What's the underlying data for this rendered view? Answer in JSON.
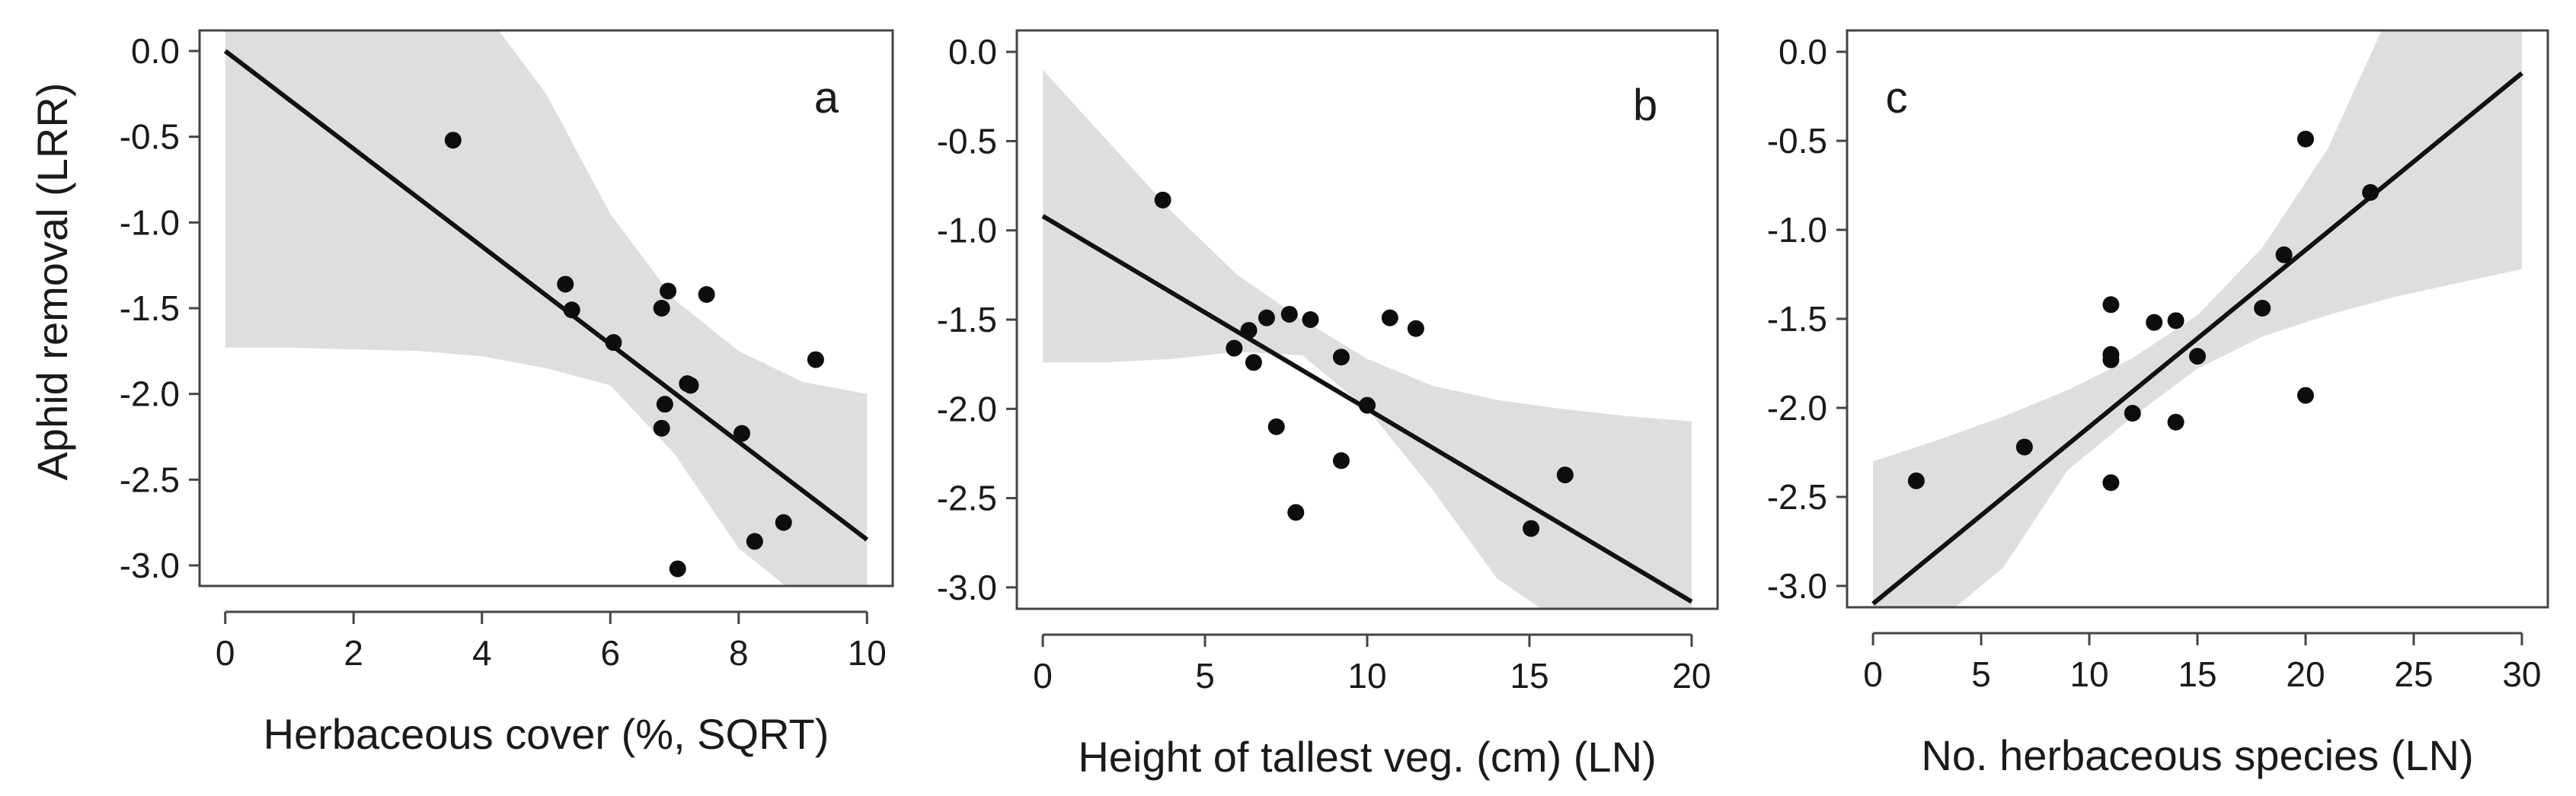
{
  "figure": {
    "ylabel": "Aphid removal (LRR)"
  },
  "chart_data": [
    {
      "type": "scatter",
      "panel_label": "a",
      "xlabel": "Herbaceous cover (%, SQRT)",
      "ylabel": "Aphid removal (LRR)",
      "xlim": [
        -0.4,
        10.4
      ],
      "ylim": [
        -3.12,
        0.12
      ],
      "xticks": [
        0,
        2,
        4,
        6,
        8,
        10
      ],
      "xtick_labels": [
        "0",
        "2",
        "4",
        "6",
        "8",
        "10"
      ],
      "yticks": [
        0.0,
        -0.5,
        -1.0,
        -1.5,
        -2.0,
        -2.5,
        -3.0
      ],
      "ytick_labels": [
        "0.0",
        "-0.5",
        "-1.0",
        "-1.5",
        "-2.0",
        "-2.5",
        "-3.0"
      ],
      "points": [
        {
          "x": 3.55,
          "y": -0.52
        },
        {
          "x": 5.3,
          "y": -1.36
        },
        {
          "x": 5.4,
          "y": -1.51
        },
        {
          "x": 6.05,
          "y": -1.7
        },
        {
          "x": 6.8,
          "y": -1.5
        },
        {
          "x": 6.9,
          "y": -1.4
        },
        {
          "x": 7.5,
          "y": -1.42
        },
        {
          "x": 9.2,
          "y": -1.8
        },
        {
          "x": 6.85,
          "y": -2.06
        },
        {
          "x": 7.2,
          "y": -1.94
        },
        {
          "x": 7.25,
          "y": -1.95
        },
        {
          "x": 6.8,
          "y": -2.2
        },
        {
          "x": 8.05,
          "y": -2.23
        },
        {
          "x": 8.25,
          "y": -2.86
        },
        {
          "x": 8.7,
          "y": -2.75
        },
        {
          "x": 7.05,
          "y": -3.02
        }
      ],
      "fit": {
        "x": [
          0,
          10
        ],
        "y": [
          0.0,
          -2.85
        ]
      },
      "ci": {
        "x": [
          0,
          1,
          2,
          3,
          4,
          5,
          6,
          7,
          8,
          9,
          10
        ],
        "upper": [
          0.25,
          0.25,
          0.25,
          0.25,
          0.25,
          -0.25,
          -0.95,
          -1.45,
          -1.75,
          -1.93,
          -2.0
        ],
        "lower": [
          -1.73,
          -1.73,
          -1.74,
          -1.75,
          -1.78,
          -1.85,
          -1.95,
          -2.35,
          -2.9,
          -3.2,
          -3.2
        ]
      }
    },
    {
      "type": "scatter",
      "panel_label": "b",
      "xlabel": "Height of tallest veg. (cm) (LN)",
      "ylabel": "",
      "xlim": [
        -0.8,
        20.8
      ],
      "ylim": [
        -3.12,
        0.12
      ],
      "xticks": [
        0,
        5,
        10,
        15,
        20
      ],
      "xtick_labels": [
        "0",
        "5",
        "10",
        "15",
        "20"
      ],
      "yticks": [
        0.0,
        -0.5,
        -1.0,
        -1.5,
        -2.0,
        -2.5,
        -3.0
      ],
      "ytick_labels": [
        "0.0",
        "-0.5",
        "-1.0",
        "-1.5",
        "-2.0",
        "-2.5",
        "-3.0"
      ],
      "points": [
        {
          "x": 3.7,
          "y": -0.83
        },
        {
          "x": 5.9,
          "y": -1.66
        },
        {
          "x": 6.35,
          "y": -1.56
        },
        {
          "x": 6.5,
          "y": -1.74
        },
        {
          "x": 6.9,
          "y": -1.49
        },
        {
          "x": 7.2,
          "y": -2.1
        },
        {
          "x": 7.6,
          "y": -1.47
        },
        {
          "x": 7.8,
          "y": -2.58
        },
        {
          "x": 8.25,
          "y": -1.5
        },
        {
          "x": 9.2,
          "y": -1.71
        },
        {
          "x": 9.2,
          "y": -2.29
        },
        {
          "x": 10.0,
          "y": -1.98
        },
        {
          "x": 10.7,
          "y": -1.49
        },
        {
          "x": 11.5,
          "y": -1.55
        },
        {
          "x": 15.05,
          "y": -2.67
        },
        {
          "x": 16.1,
          "y": -2.37
        }
      ],
      "fit": {
        "x": [
          0,
          20
        ],
        "y": [
          -0.92,
          -3.08
        ]
      },
      "ci": {
        "x": [
          0,
          2,
          4,
          6,
          8,
          10,
          12,
          14,
          16,
          18,
          20
        ],
        "upper": [
          -0.1,
          -0.5,
          -0.9,
          -1.25,
          -1.5,
          -1.72,
          -1.87,
          -1.95,
          -2.0,
          -2.04,
          -2.07
        ],
        "lower": [
          -1.74,
          -1.74,
          -1.72,
          -1.68,
          -1.7,
          -2.0,
          -2.45,
          -2.95,
          -3.2,
          -3.2,
          -3.2
        ]
      }
    },
    {
      "type": "scatter",
      "panel_label": "c",
      "xlabel": "No. herbaceous species (LN)",
      "ylabel": "",
      "xlim": [
        -1.2,
        31.2
      ],
      "ylim": [
        -3.12,
        0.12
      ],
      "xticks": [
        0,
        5,
        10,
        15,
        20,
        25,
        30
      ],
      "xtick_labels": [
        "0",
        "5",
        "10",
        "15",
        "20",
        "25",
        "30"
      ],
      "yticks": [
        0.0,
        -0.5,
        -1.0,
        -1.5,
        -2.0,
        -2.5,
        -3.0
      ],
      "ytick_labels": [
        "0.0",
        "-0.5",
        "-1.0",
        "-1.5",
        "-2.0",
        "-2.5",
        "-3.0"
      ],
      "points": [
        {
          "x": 2.0,
          "y": -2.41
        },
        {
          "x": 7.0,
          "y": -2.22
        },
        {
          "x": 11.0,
          "y": -1.42
        },
        {
          "x": 11.0,
          "y": -1.7
        },
        {
          "x": 11.0,
          "y": -1.73
        },
        {
          "x": 11.0,
          "y": -2.42
        },
        {
          "x": 12.0,
          "y": -2.03
        },
        {
          "x": 13.0,
          "y": -1.52
        },
        {
          "x": 14.0,
          "y": -1.51
        },
        {
          "x": 14.0,
          "y": -2.08
        },
        {
          "x": 15.0,
          "y": -1.71
        },
        {
          "x": 18.0,
          "y": -1.44
        },
        {
          "x": 19.0,
          "y": -1.14
        },
        {
          "x": 20.0,
          "y": -0.49
        },
        {
          "x": 20.0,
          "y": -1.93
        },
        {
          "x": 23.0,
          "y": -0.79
        }
      ],
      "fit": {
        "x": [
          0,
          30
        ],
        "y": [
          -3.1,
          -0.12
        ]
      },
      "ci": {
        "x": [
          0,
          3,
          6,
          9,
          12,
          15,
          18,
          21,
          24,
          27,
          30
        ],
        "upper": [
          -2.3,
          -2.18,
          -2.05,
          -1.9,
          -1.72,
          -1.48,
          -1.1,
          -0.55,
          0.25,
          0.25,
          0.25
        ],
        "lower": [
          -3.2,
          -3.2,
          -2.9,
          -2.35,
          -2.05,
          -1.78,
          -1.6,
          -1.48,
          -1.38,
          -1.3,
          -1.22
        ]
      }
    }
  ]
}
